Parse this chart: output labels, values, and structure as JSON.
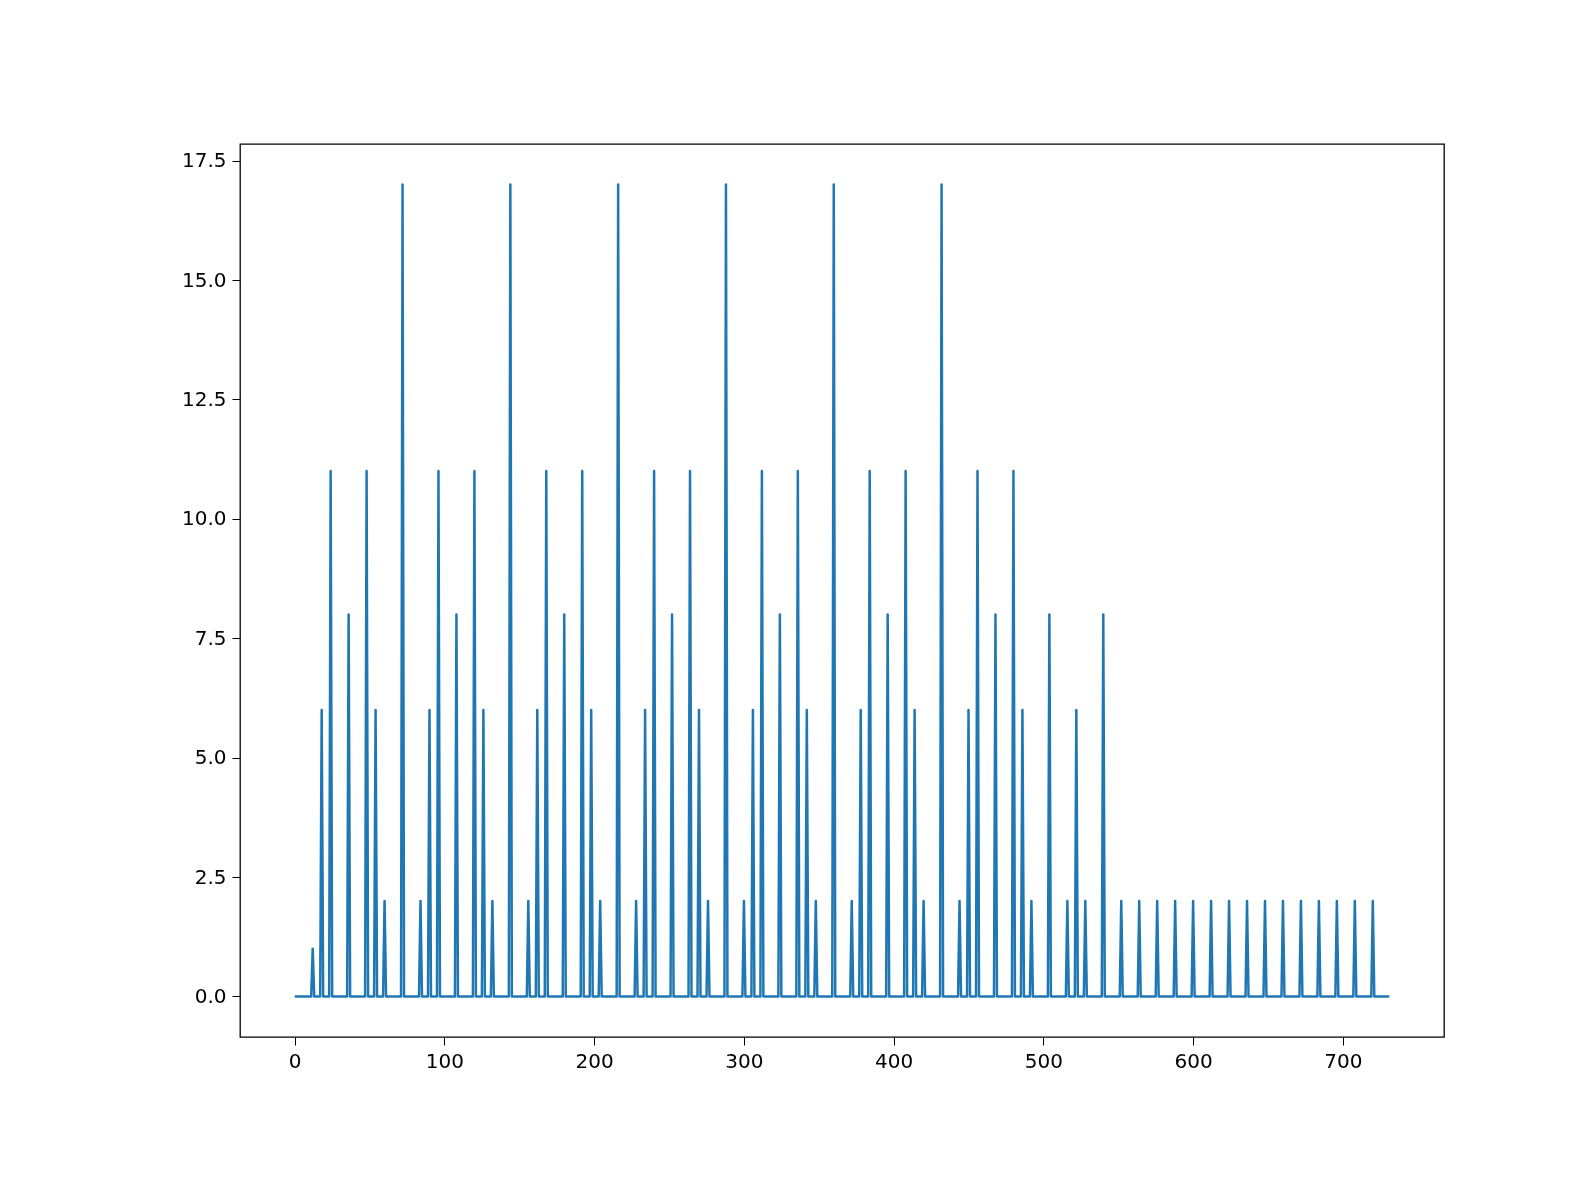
{
  "chart_data": {
    "type": "line",
    "color": "#1f77b4",
    "x": [
      0,
      11,
      12,
      13,
      17,
      18,
      19,
      23,
      24,
      25,
      35,
      36,
      37,
      47,
      48,
      49,
      53,
      54,
      55,
      59,
      60,
      61,
      71,
      72,
      73,
      83,
      84,
      85,
      89,
      90,
      91,
      95,
      96,
      97,
      107,
      108,
      109,
      119,
      120,
      121,
      125,
      126,
      127,
      131,
      132,
      133,
      143,
      144,
      145,
      155,
      156,
      157,
      161,
      162,
      163,
      167,
      168,
      169,
      179,
      180,
      181,
      191,
      192,
      193,
      197,
      198,
      199,
      203,
      204,
      205,
      215,
      216,
      217,
      227,
      228,
      229,
      233,
      234,
      235,
      239,
      240,
      241,
      251,
      252,
      253,
      263,
      264,
      265,
      269,
      270,
      271,
      275,
      276,
      277,
      287,
      288,
      289,
      299,
      300,
      301,
      305,
      306,
      307,
      311,
      312,
      313,
      323,
      324,
      325,
      335,
      336,
      337,
      341,
      342,
      343,
      347,
      348,
      349,
      359,
      360,
      361,
      371,
      372,
      373,
      377,
      378,
      379,
      383,
      384,
      385,
      395,
      396,
      397,
      407,
      408,
      409,
      413,
      414,
      415,
      419,
      420,
      421,
      431,
      432,
      433,
      443,
      444,
      445,
      449,
      450,
      451,
      455,
      456,
      457,
      467,
      468,
      469,
      479,
      480,
      481,
      485,
      486,
      487,
      491,
      492,
      493,
      503,
      504,
      505,
      515,
      516,
      517,
      521,
      522,
      523,
      527,
      528,
      529,
      539,
      540,
      541,
      551,
      552,
      553,
      563,
      564,
      565,
      575,
      576,
      577,
      587,
      588,
      589,
      599,
      600,
      601,
      611,
      612,
      613,
      623,
      624,
      625,
      635,
      636,
      637,
      647,
      648,
      649,
      659,
      660,
      661,
      671,
      672,
      673,
      683,
      684,
      685,
      695,
      696,
      697,
      707,
      708,
      709,
      719,
      720,
      721,
      731
    ],
    "values": [
      0,
      0,
      1,
      0,
      0,
      6,
      0,
      0,
      11,
      0,
      0,
      8,
      0,
      0,
      11,
      0,
      0,
      6,
      0,
      0,
      2,
      0,
      0,
      17,
      0,
      0,
      2,
      0,
      0,
      6,
      0,
      0,
      11,
      0,
      0,
      8,
      0,
      0,
      11,
      0,
      0,
      6,
      0,
      0,
      2,
      0,
      0,
      17,
      0,
      0,
      2,
      0,
      0,
      6,
      0,
      0,
      11,
      0,
      0,
      8,
      0,
      0,
      11,
      0,
      0,
      6,
      0,
      0,
      2,
      0,
      0,
      17,
      0,
      0,
      2,
      0,
      0,
      6,
      0,
      0,
      11,
      0,
      0,
      8,
      0,
      0,
      11,
      0,
      0,
      6,
      0,
      0,
      2,
      0,
      0,
      17,
      0,
      0,
      2,
      0,
      0,
      6,
      0,
      0,
      11,
      0,
      0,
      8,
      0,
      0,
      11,
      0,
      0,
      6,
      0,
      0,
      2,
      0,
      0,
      17,
      0,
      0,
      2,
      0,
      0,
      6,
      0,
      0,
      11,
      0,
      0,
      8,
      0,
      0,
      11,
      0,
      0,
      6,
      0,
      0,
      2,
      0,
      0,
      17,
      0,
      0,
      2,
      0,
      0,
      6,
      0,
      0,
      11,
      0,
      0,
      8,
      0,
      0,
      11,
      0,
      0,
      6,
      0,
      0,
      2,
      0,
      0,
      8,
      0,
      0,
      2,
      0,
      0,
      6,
      0,
      0,
      2,
      0,
      0,
      8,
      0,
      0,
      2,
      0,
      0,
      2,
      0,
      0,
      2,
      0,
      0,
      2,
      0,
      0,
      2,
      0,
      0,
      2,
      0,
      0,
      2,
      0,
      0,
      2,
      0,
      0,
      2,
      0,
      0,
      2,
      0,
      0,
      2,
      0,
      0,
      2,
      0,
      0,
      2,
      0,
      0,
      2,
      0,
      0,
      2,
      0,
      0
    ],
    "xlim": [
      -36.55,
      767.55
    ],
    "ylim": [
      -0.85,
      17.85
    ],
    "xticks": [
      0,
      100,
      200,
      300,
      400,
      500,
      600,
      700
    ],
    "yticks": [
      {
        "value": 0,
        "label": "0.0"
      },
      2.5,
      {
        "value": 5,
        "label": "5.0"
      },
      7.5,
      {
        "value": 10,
        "label": "10.0"
      },
      12.5,
      {
        "value": 15,
        "label": "15.0"
      },
      17.5
    ]
  }
}
